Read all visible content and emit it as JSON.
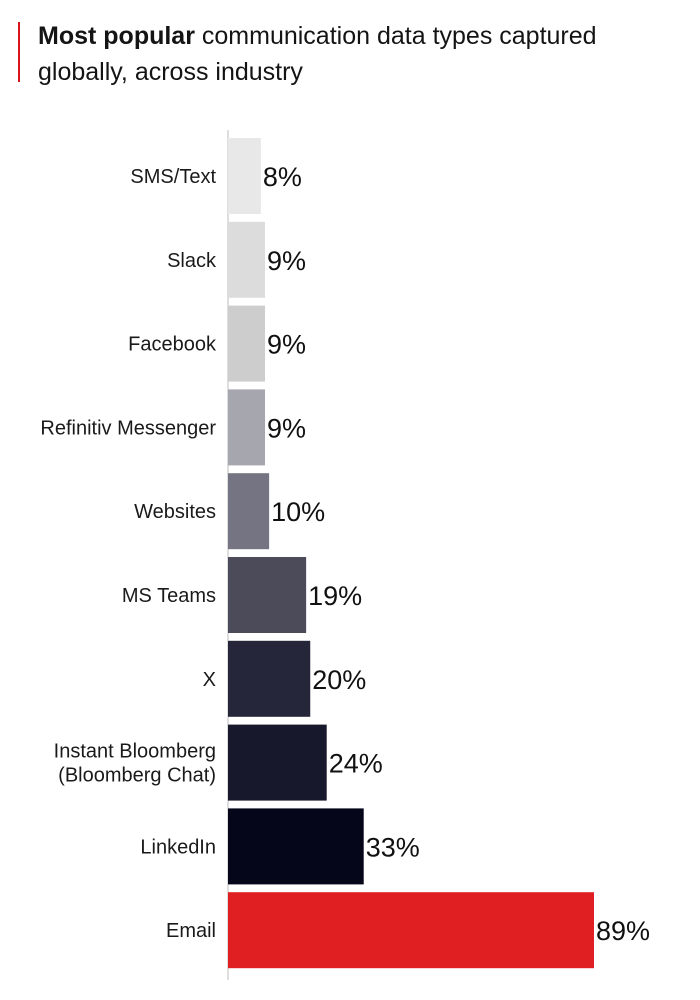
{
  "title": {
    "bold": "Most popular",
    "rest": "communication data types captured globally, across industry"
  },
  "chart_data": {
    "type": "bar",
    "orientation": "horizontal",
    "title": "Most popular communication data types captured globally, across industry",
    "xlabel": "",
    "ylabel": "",
    "xlim": [
      0,
      89
    ],
    "grid": false,
    "value_suffix": "%",
    "categories": [
      "SMS/Text",
      "Slack",
      "Facebook",
      "Refinitiv Messenger",
      "Websites",
      "MS Teams",
      "X",
      "Instant Bloomberg (Bloomberg Chat)",
      "LinkedIn",
      "Email"
    ],
    "category_lines": [
      [
        "SMS/Text"
      ],
      [
        "Slack"
      ],
      [
        "Facebook"
      ],
      [
        "Refinitiv Messenger"
      ],
      [
        "Websites"
      ],
      [
        "MS Teams"
      ],
      [
        "X"
      ],
      [
        "Instant Bloomberg",
        "(Bloomberg Chat)"
      ],
      [
        "LinkedIn"
      ],
      [
        "Email"
      ]
    ],
    "values": [
      8,
      9,
      9,
      9,
      10,
      19,
      20,
      24,
      33,
      89
    ],
    "value_labels": [
      "8%",
      "9%",
      "9%",
      "9%",
      "10%",
      "19%",
      "20%",
      "24%",
      "33%",
      "89%"
    ],
    "colors": [
      "#e8e8e8",
      "#dcdcdc",
      "#cdcdcd",
      "#a6a6ae",
      "#747482",
      "#4b4b5a",
      "#26263a",
      "#18182d",
      "#06061a",
      "#e01f22"
    ],
    "axis_color": "#bdbdbd"
  }
}
